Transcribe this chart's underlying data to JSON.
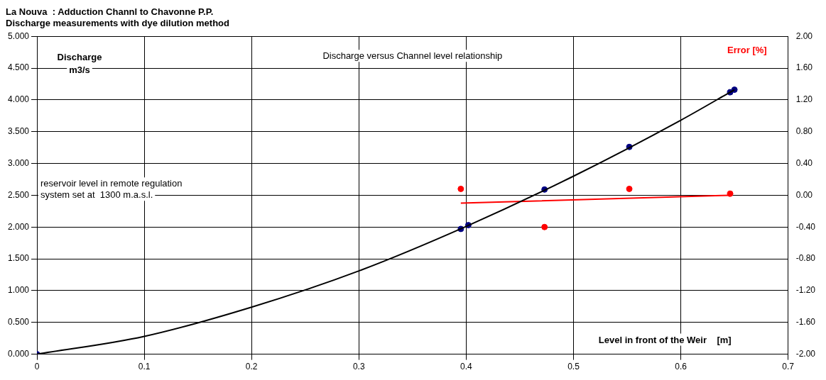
{
  "chart_data": {
    "type": "scatter",
    "title": "La Nouva  : Adduction Channl to Chavonne P.P.",
    "subtitle": "Discharge measurements with dye dilution method",
    "xlabel": "Level in front of the Weir    [m]",
    "ylabel": "Discharge m3/s",
    "y2label": "Error [%]",
    "annotations": [
      "Discharge versus Channel level relationship",
      "reservoir level in remote regulation system set at  1300 m.a.s.l."
    ],
    "series": [
      {
        "type": "line",
        "color": "#000000",
        "marker": "none",
        "x": [
          0,
          0.1,
          0.2,
          0.3,
          0.4,
          0.5,
          0.6,
          0.65
        ],
        "values": [
          0,
          0.28,
          0.74,
          1.31,
          2.01,
          2.8,
          3.68,
          4.16
        ]
      },
      {
        "type": "scatter",
        "color": "#000080",
        "marker": "circle",
        "x": [
          0,
          0.395,
          0.402,
          0.473,
          0.552,
          0.646,
          0.65
        ],
        "values": [
          0,
          1.97,
          2.03,
          2.59,
          3.26,
          4.12,
          4.16
        ]
      },
      {
        "type": "line",
        "color": "#ff0000",
        "axis": "y2",
        "marker": "none",
        "x": [
          0.395,
          0.646
        ],
        "values": [
          -0.1,
          0
        ]
      },
      {
        "type": "scatter",
        "color": "#ff0000",
        "axis": "y2",
        "marker": "circle",
        "x": [
          0.395,
          0.473,
          0.552,
          0.646
        ],
        "values": [
          0.08,
          -0.4,
          0.08,
          0.02
        ]
      }
    ],
    "xlim": [
      0,
      0.7
    ],
    "xticks": [
      0,
      0.1,
      0.2,
      0.3,
      0.4,
      0.5,
      0.6,
      0.7
    ],
    "ylim": [
      0,
      5
    ],
    "yticks": [
      {
        "value": 0,
        "label": "0.000"
      },
      {
        "value": 0.5,
        "label": "0.500"
      },
      {
        "value": 1,
        "label": "1.000"
      },
      {
        "value": 1.5,
        "label": "1.500"
      },
      {
        "value": 2,
        "label": "2.000"
      },
      {
        "value": 2.5,
        "label": "2.500"
      },
      {
        "value": 3,
        "label": "3.000"
      },
      {
        "value": 3.5,
        "label": "3.500"
      },
      {
        "value": 4,
        "label": "4.000"
      },
      {
        "value": 4.5,
        "label": "4.500"
      },
      {
        "value": 5,
        "label": "5.000"
      }
    ],
    "y2lim": [
      -2,
      2
    ],
    "y2ticks": [
      {
        "value": -2,
        "label": "-2.00"
      },
      {
        "value": -1.6,
        "label": "-1.60"
      },
      {
        "value": -1.2,
        "label": "-1.20"
      },
      {
        "value": -0.8,
        "label": "-0.80"
      },
      {
        "value": -0.4,
        "label": "-0.40"
      },
      {
        "value": 0,
        "label": "0.00"
      },
      {
        "value": 0.4,
        "label": "0.40"
      },
      {
        "value": 0.8,
        "label": "0.80"
      },
      {
        "value": 1.2,
        "label": "1.20"
      },
      {
        "value": 1.6,
        "label": "1.60"
      },
      {
        "value": 2,
        "label": "2.00"
      }
    ],
    "grid": true,
    "legend": false
  }
}
